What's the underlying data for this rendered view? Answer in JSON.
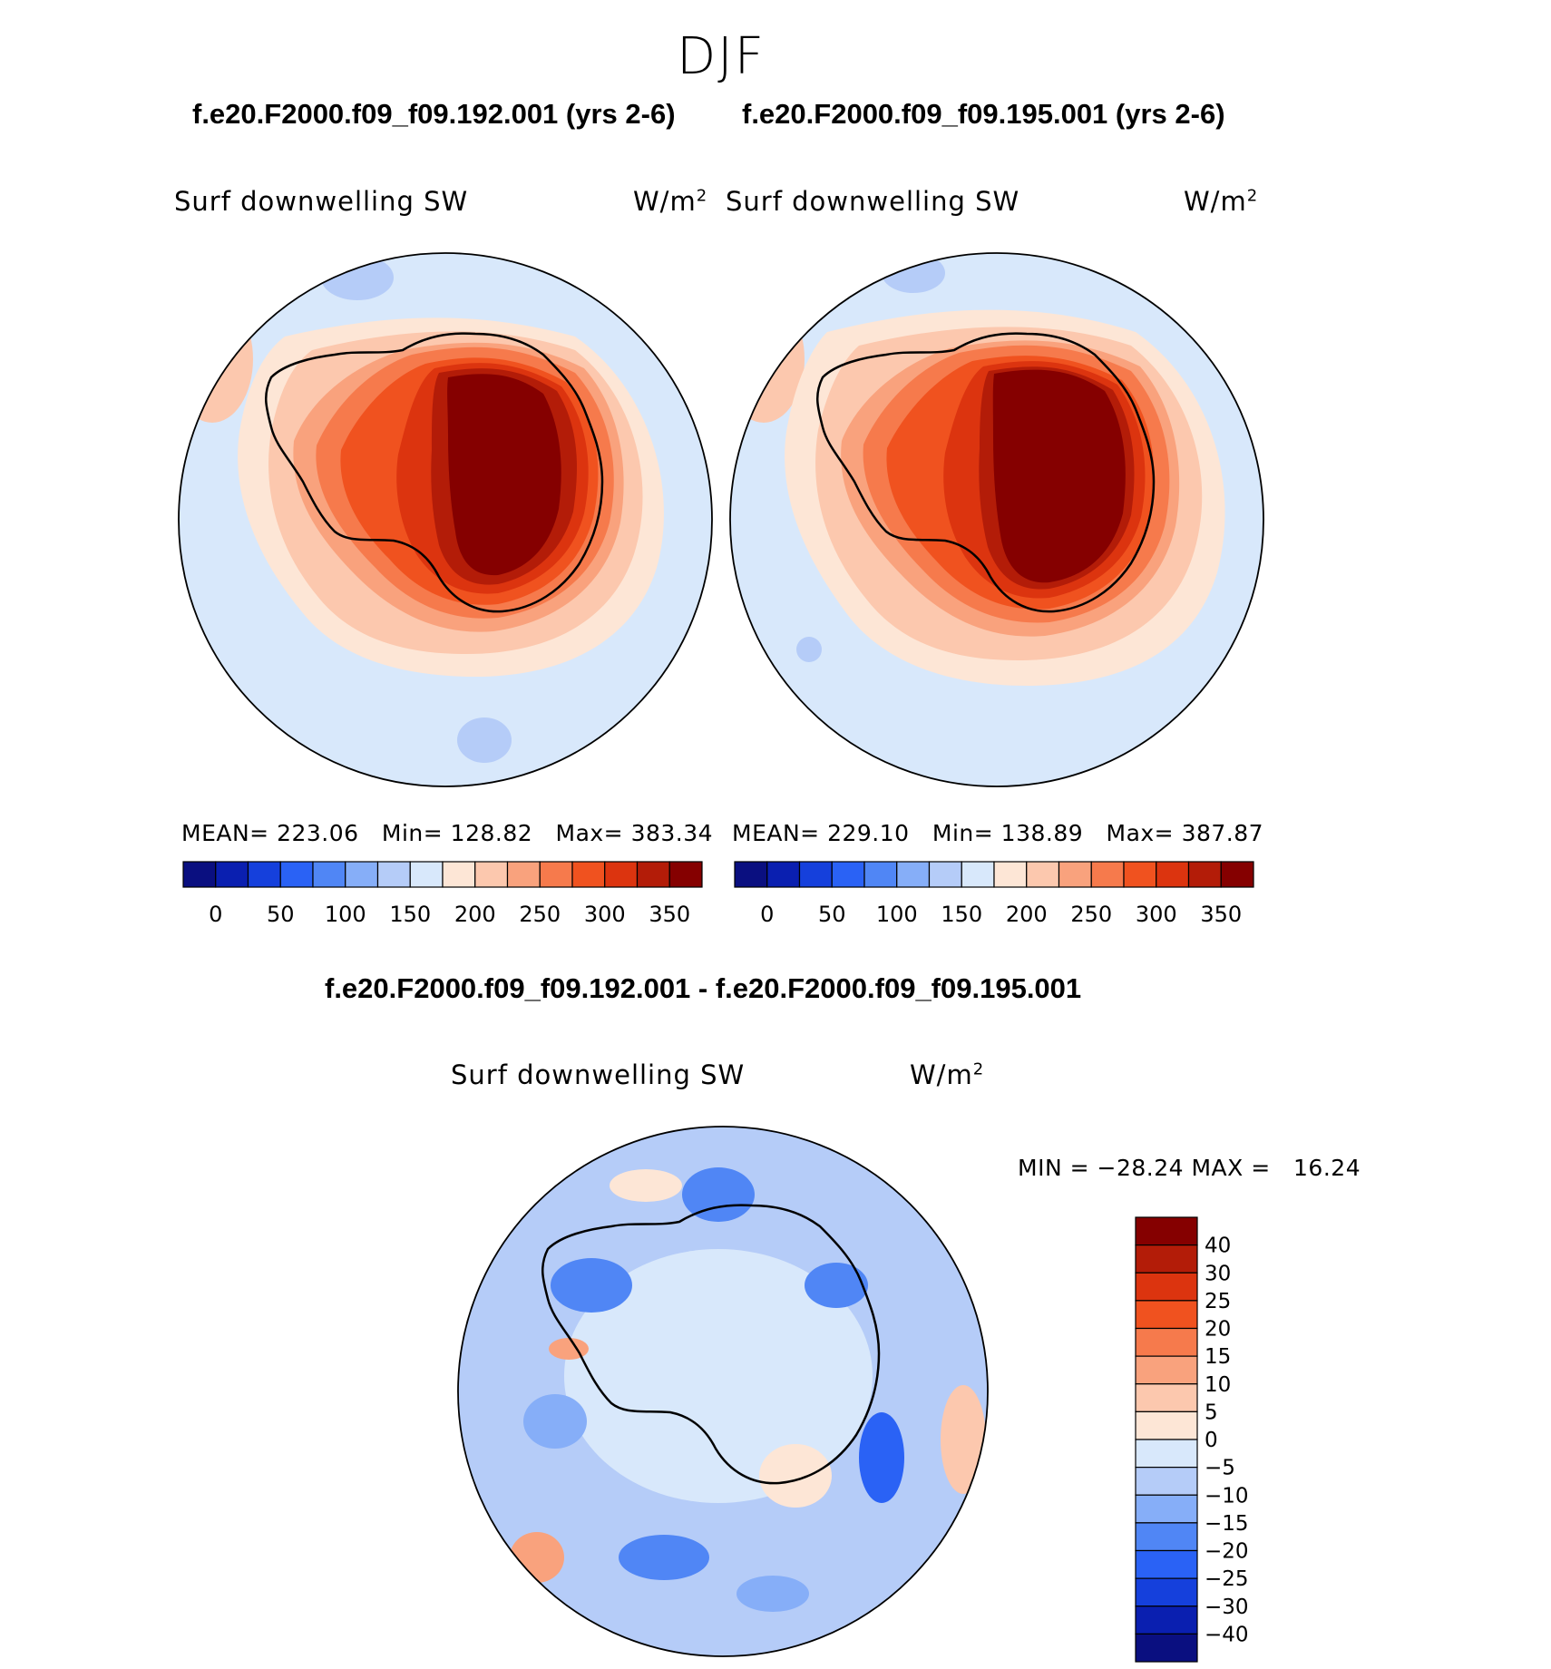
{
  "season": "DJF",
  "panels": [
    {
      "case_title": "f.e20.F2000.f09_f09.192.001 (yrs 2-6)",
      "variable": "Surf downwelling SW",
      "units": "W/m",
      "units_exp": "2",
      "stats": {
        "mean_label": "MEAN=",
        "mean": "223.06",
        "min_label": "Min=",
        "min": "128.82",
        "max_label": "Max=",
        "max": "383.34"
      }
    },
    {
      "case_title": "f.e20.F2000.f09_f09.195.001 (yrs 2-6)",
      "variable": "Surf downwelling SW",
      "units": "W/m",
      "units_exp": "2",
      "stats": {
        "mean_label": "MEAN=",
        "mean": "229.10",
        "min_label": "Min=",
        "min": "138.89",
        "max_label": "Max=",
        "max": "387.87"
      }
    }
  ],
  "abs_colorbar": {
    "colors": [
      "#0a0f80",
      "#0a1fb0",
      "#1540dc",
      "#2a62f5",
      "#5086f5",
      "#86aef8",
      "#b5ccf8",
      "#d8e8fb",
      "#fde6d6",
      "#fcc8ae",
      "#f9a27d",
      "#f67a4c",
      "#f0521f",
      "#dc340f",
      "#b31c08",
      "#850000"
    ],
    "labels": [
      "0",
      "50",
      "100",
      "150",
      "200",
      "250",
      "300",
      "350"
    ]
  },
  "diff": {
    "title": "f.e20.F2000.f09_f09.192.001 - f.e20.F2000.f09_f09.195.001",
    "variable": "Surf downwelling SW",
    "units": "W/m",
    "units_exp": "2",
    "minmax": {
      "min_label": "MIN =",
      "min": "−28.24",
      "max_label": "MAX =",
      "max": "16.24"
    },
    "colorbar": {
      "colors": [
        "#850000",
        "#b31c08",
        "#dc340f",
        "#f0521f",
        "#f67a4c",
        "#f9a27d",
        "#fcc8ae",
        "#fde6d6",
        "#d8e8fb",
        "#b5ccf8",
        "#86aef8",
        "#5086f5",
        "#2a62f5",
        "#1540dc",
        "#0a1fb0",
        "#0a0f80"
      ],
      "labels": [
        "40",
        "30",
        "25",
        "20",
        "15",
        "10",
        "5",
        "0",
        "−5",
        "−10",
        "−15",
        "−20",
        "−25",
        "−30",
        "−40"
      ]
    }
  }
}
